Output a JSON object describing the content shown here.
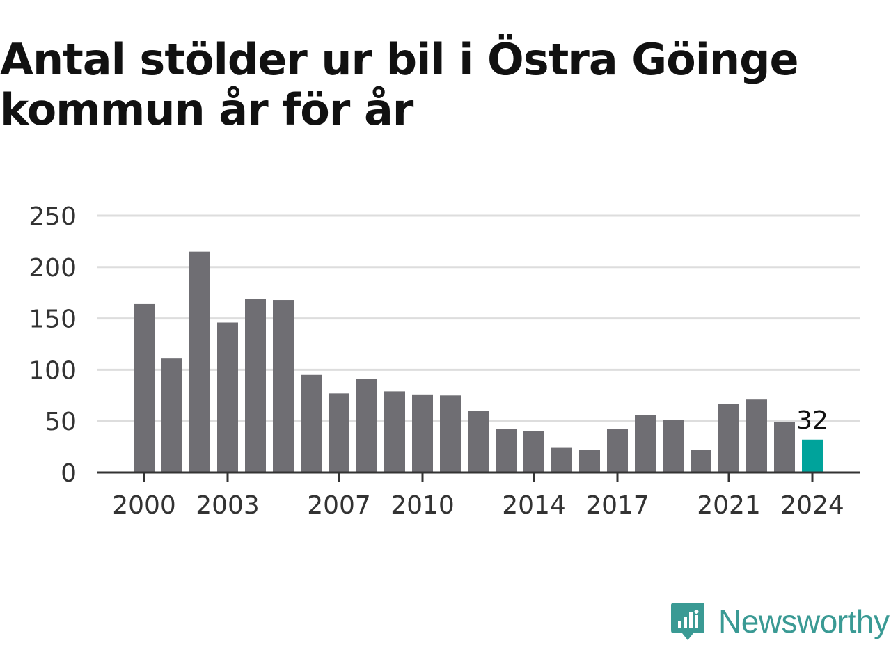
{
  "chart_data": {
    "type": "bar",
    "title": "Antal stölder ur bil i Östra Göinge kommun år för år",
    "xlabel": "",
    "ylabel": "",
    "categories": [
      "2000",
      "2001",
      "2002",
      "2003",
      "2004",
      "2005",
      "2006",
      "2007",
      "2008",
      "2009",
      "2010",
      "2011",
      "2012",
      "2013",
      "2014",
      "2015",
      "2016",
      "2017",
      "2018",
      "2019",
      "2020",
      "2021",
      "2022",
      "2023",
      "2024"
    ],
    "values": [
      164,
      111,
      215,
      146,
      169,
      168,
      95,
      77,
      91,
      79,
      76,
      75,
      60,
      42,
      40,
      24,
      22,
      42,
      56,
      51,
      22,
      67,
      71,
      49,
      32
    ],
    "ylim": [
      0,
      250
    ],
    "yticks": [
      0,
      50,
      100,
      150,
      200,
      250
    ],
    "xtick_labels": [
      "2000",
      "2003",
      "2007",
      "2010",
      "2014",
      "2017",
      "2021",
      "2024"
    ],
    "highlight": {
      "category": "2024",
      "label": "32"
    },
    "grid": true,
    "colors": {
      "bar": "#6f6e73",
      "highlight": "#00a39b",
      "grid": "#dddddd",
      "axis": "#333333"
    }
  },
  "brand": {
    "name": "Newsworthy",
    "color": "#3a9a94",
    "icon": "newsworthy-logo-icon"
  }
}
